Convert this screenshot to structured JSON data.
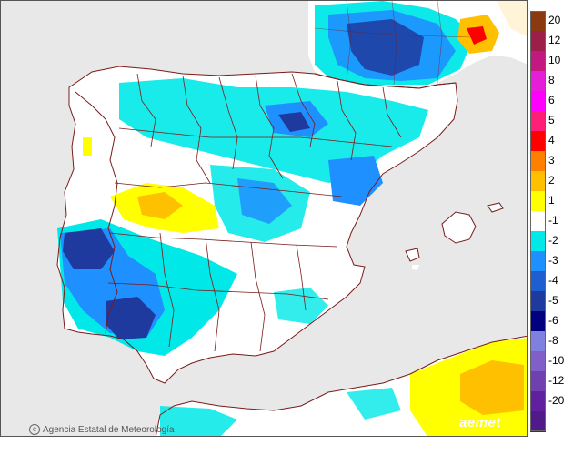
{
  "credit": {
    "copyright_symbol": "c",
    "agency": "Agencia Estatal de Meteorología"
  },
  "logo": "aemet",
  "legend": {
    "colors": [
      "#8b3a0f",
      "#9e1e4a",
      "#c2187f",
      "#e51ed8",
      "#ff00ff",
      "#ff1e78",
      "#ff0000",
      "#ff7f00",
      "#ffc000",
      "#ffff00",
      "#ffffff",
      "#00e8e8",
      "#1e90ff",
      "#1e5ed1",
      "#1e3a9e",
      "#000080",
      "#8080e0",
      "#8060c8",
      "#7040b0",
      "#6020a0",
      "#501a8a"
    ],
    "labels": [
      "20",
      "12",
      "10",
      "8",
      "6",
      "5",
      "4",
      "3",
      "2",
      "1",
      "-1",
      "-2",
      "-3",
      "-4",
      "-5",
      "-6",
      "-8",
      "-10",
      "-12",
      "-20"
    ]
  },
  "map_colors": {
    "sea": "#e8e8e8",
    "land": "#ffffff",
    "border": "#7a1a1a",
    "light_blue": "#00e8e8",
    "mid_blue": "#1e90ff",
    "dark_blue": "#1e3a9e",
    "yellow": "#ffff00",
    "orange_yellow": "#ffc000",
    "orange": "#ff7f00",
    "red": "#ff0000"
  }
}
